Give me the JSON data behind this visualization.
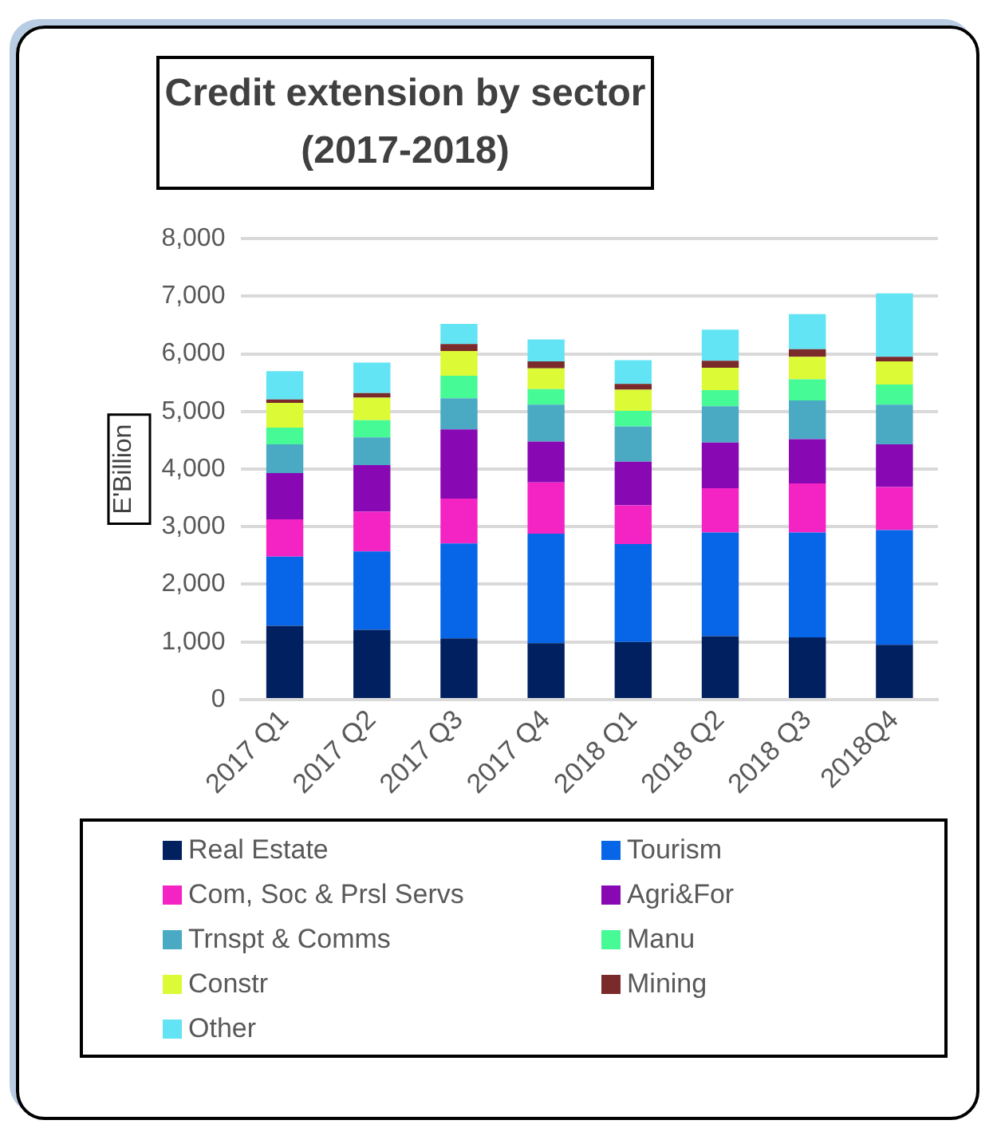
{
  "chart_data": {
    "type": "bar",
    "title": "Credit extension by sector (2017-2018)",
    "ylabel": "E'Billion",
    "categories": [
      "2017 Q1",
      "2017 Q2",
      "2017 Q3",
      "2017 Q4",
      "2018 Q1",
      "2018 Q2",
      "2018 Q3",
      "2018Q4"
    ],
    "stacked": true,
    "ylim": [
      0,
      8000
    ],
    "yticks": [
      {
        "value": 0,
        "label": "0"
      },
      {
        "value": 1000,
        "label": "1,000"
      },
      {
        "value": 2000,
        "label": "2,000"
      },
      {
        "value": 3000,
        "label": "3,000"
      },
      {
        "value": 4000,
        "label": "4,000"
      },
      {
        "value": 5000,
        "label": "5,000"
      },
      {
        "value": 6000,
        "label": "6,000"
      },
      {
        "value": 7000,
        "label": "7,000"
      },
      {
        "value": 8000,
        "label": "8,000"
      }
    ],
    "grid": "y",
    "legend": "bottom",
    "series": [
      {
        "name": "Real Estate",
        "color": "#002060",
        "values": [
          1280,
          1210,
          1060,
          980,
          1000,
          1100,
          1080,
          950
        ]
      },
      {
        "name": "Tourism",
        "color": "#0766e8",
        "values": [
          1200,
          1360,
          1650,
          1900,
          1700,
          1800,
          1820,
          1990
        ]
      },
      {
        "name": "Com, Soc & Prsl Servs",
        "color": "#f424c4",
        "values": [
          650,
          690,
          780,
          890,
          670,
          770,
          850,
          750
        ]
      },
      {
        "name": "Agri&For",
        "color": "#8808b4",
        "values": [
          800,
          810,
          1200,
          710,
          760,
          790,
          770,
          740
        ]
      },
      {
        "name": "Trnspt & Comms",
        "color": "#4aaac4",
        "values": [
          500,
          480,
          540,
          640,
          610,
          630,
          670,
          690
        ]
      },
      {
        "name": "Manu",
        "color": "#46fa96",
        "values": [
          290,
          300,
          390,
          270,
          270,
          280,
          370,
          350
        ]
      },
      {
        "name": "Constr",
        "color": "#dcfa36",
        "values": [
          430,
          390,
          430,
          360,
          370,
          390,
          390,
          400
        ]
      },
      {
        "name": "Mining",
        "color": "#7a2a2a",
        "values": [
          60,
          80,
          120,
          120,
          100,
          120,
          130,
          80
        ]
      },
      {
        "name": "Other",
        "color": "#62e4f4",
        "values": [
          490,
          530,
          350,
          380,
          410,
          540,
          610,
          1100
        ]
      }
    ]
  }
}
